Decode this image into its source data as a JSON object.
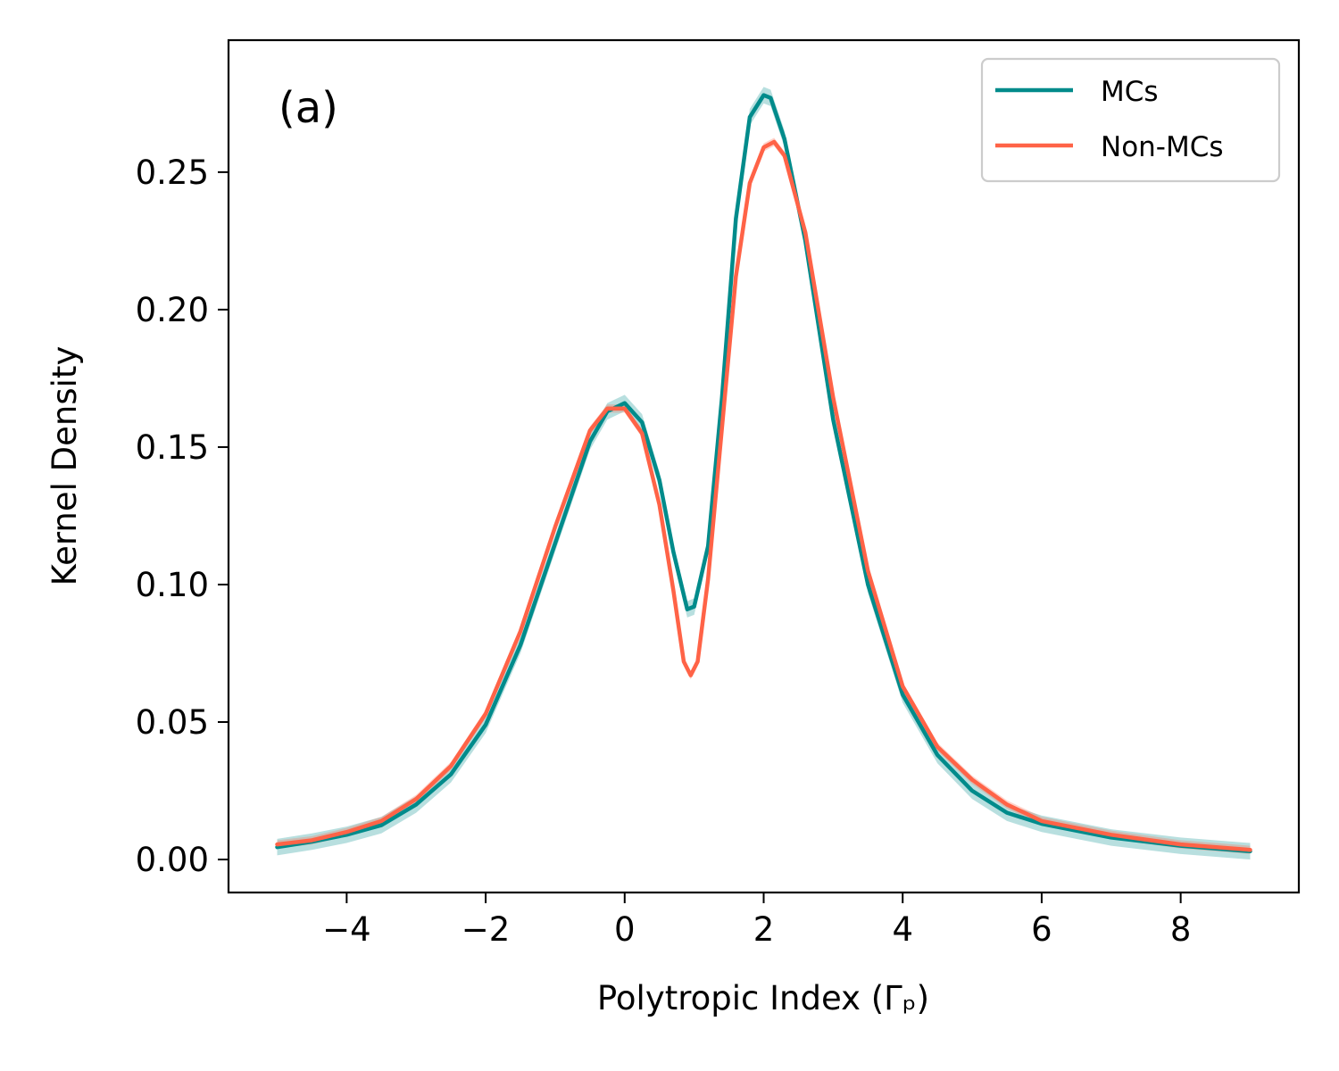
{
  "chart_data": {
    "type": "line",
    "panel_label": "(a)",
    "xlabel": "Polytropic Index (Γₚ)",
    "ylabel": "Kernel Density",
    "xlim": [
      -5.7,
      9.7
    ],
    "ylim": [
      -0.012,
      0.298
    ],
    "xticks": [
      -4,
      -2,
      0,
      2,
      4,
      6,
      8
    ],
    "xtick_labels": [
      "−4",
      "−2",
      "0",
      "2",
      "4",
      "6",
      "8"
    ],
    "yticks": [
      0.0,
      0.05,
      0.1,
      0.15,
      0.2,
      0.25
    ],
    "ytick_labels": [
      "0.00",
      "0.05",
      "0.10",
      "0.15",
      "0.20",
      "0.25"
    ],
    "legend_position": "top-right",
    "series": [
      {
        "name": "MCs",
        "color": "#008b8b",
        "band_halfwidth": 0.003,
        "x": [
          -5.0,
          -4.5,
          -4.0,
          -3.5,
          -3.0,
          -2.5,
          -2.0,
          -1.5,
          -1.0,
          -0.5,
          -0.25,
          0.0,
          0.25,
          0.5,
          0.7,
          0.9,
          1.0,
          1.2,
          1.4,
          1.6,
          1.8,
          2.0,
          2.1,
          2.3,
          2.6,
          3.0,
          3.5,
          4.0,
          4.5,
          5.0,
          5.5,
          6.0,
          7.0,
          8.0,
          9.0
        ],
        "y": [
          0.0045,
          0.0065,
          0.009,
          0.0125,
          0.02,
          0.031,
          0.049,
          0.078,
          0.115,
          0.152,
          0.163,
          0.166,
          0.159,
          0.138,
          0.112,
          0.091,
          0.092,
          0.114,
          0.168,
          0.233,
          0.27,
          0.278,
          0.277,
          0.262,
          0.225,
          0.16,
          0.1,
          0.06,
          0.038,
          0.025,
          0.017,
          0.013,
          0.008,
          0.005,
          0.003
        ]
      },
      {
        "name": "Non-MCs",
        "color": "#ff6347",
        "band_halfwidth": 0.0015,
        "x": [
          -5.0,
          -4.5,
          -4.0,
          -3.5,
          -3.0,
          -2.5,
          -2.0,
          -1.5,
          -1.0,
          -0.5,
          -0.25,
          0.0,
          0.25,
          0.5,
          0.7,
          0.85,
          0.95,
          1.05,
          1.2,
          1.4,
          1.6,
          1.8,
          2.0,
          2.15,
          2.3,
          2.6,
          3.0,
          3.5,
          4.0,
          4.5,
          5.0,
          5.5,
          6.0,
          7.0,
          8.0,
          9.0
        ],
        "y": [
          0.0055,
          0.007,
          0.01,
          0.014,
          0.022,
          0.034,
          0.053,
          0.083,
          0.121,
          0.156,
          0.164,
          0.164,
          0.155,
          0.129,
          0.098,
          0.072,
          0.067,
          0.072,
          0.102,
          0.157,
          0.212,
          0.246,
          0.259,
          0.261,
          0.256,
          0.228,
          0.168,
          0.105,
          0.063,
          0.041,
          0.029,
          0.02,
          0.014,
          0.009,
          0.0055,
          0.0035
        ]
      }
    ]
  }
}
